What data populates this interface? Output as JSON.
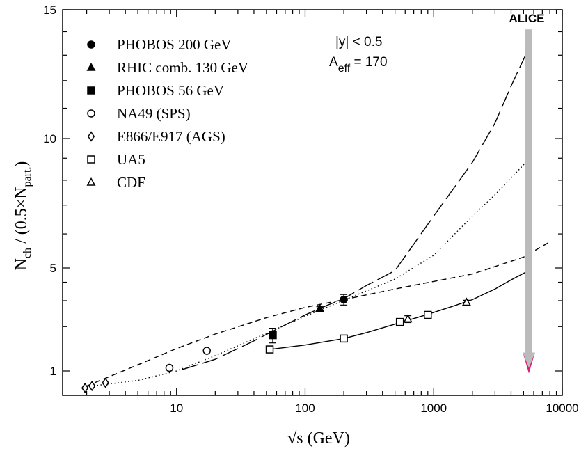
{
  "chart_data": {
    "type": "scatter",
    "xlabel": "√s (GeV)",
    "ylabel_parts": {
      "main": "N",
      "sub1": "ch",
      "mid": " / (0.5×N",
      "sub2": "part.",
      "end": ")"
    },
    "x_scale": "log",
    "xlim": [
      1.3,
      10000
    ],
    "ylim": [
      0.6,
      15
    ],
    "y_scale": "custom-nonlinear",
    "x_ticks": [
      10,
      100,
      1000,
      10000
    ],
    "x_tick_labels": [
      "10",
      "100",
      "1000",
      "10000"
    ],
    "y_ticks": [
      1,
      5,
      10,
      15
    ],
    "y_tick_labels": [
      "1",
      "5",
      "10",
      "15"
    ],
    "y_minor_ticks": [
      2,
      3,
      4,
      6,
      7,
      8,
      9,
      11,
      12,
      13,
      14
    ],
    "grid": false,
    "legend_position": "top-left",
    "annotation": {
      "line1": "|y| < 0.5",
      "a_main": "A",
      "a_sub": "eff",
      "a_rest": " = 170"
    },
    "alice": {
      "label": "ALICE",
      "x": 5500,
      "y_top": 14.1,
      "y_bottom": 0.95,
      "color": "#bbbbbb",
      "tip_color": "#e0197a"
    },
    "series": [
      {
        "name": "PHOBOS 200 GeV",
        "marker": "filled-circle",
        "points": [
          {
            "x": 200,
            "y": 3.05,
            "err": 0.25
          }
        ]
      },
      {
        "name": "RHIC comb. 130 GeV",
        "marker": "filled-triangle",
        "points": [
          {
            "x": 130,
            "y": 2.65,
            "err": 0.08
          }
        ]
      },
      {
        "name": "PHOBOS 56 GeV",
        "marker": "filled-square",
        "points": [
          {
            "x": 56,
            "y": 1.75,
            "err": 0.2
          }
        ]
      },
      {
        "name": "NA49 (SPS)",
        "marker": "open-circle",
        "points": [
          {
            "x": 8.8,
            "y": 1.05
          },
          {
            "x": 17.2,
            "y": 1.37
          }
        ]
      },
      {
        "name": "E866/E917 (AGS)",
        "marker": "open-diamond",
        "points": [
          {
            "x": 1.94,
            "y": 0.7
          },
          {
            "x": 2.2,
            "y": 0.73
          },
          {
            "x": 2.8,
            "y": 0.78
          }
        ]
      },
      {
        "name": "UA5",
        "marker": "open-square",
        "points": [
          {
            "x": 53,
            "y": 1.4
          },
          {
            "x": 200,
            "y": 1.66
          },
          {
            "x": 546,
            "y": 2.15
          },
          {
            "x": 900,
            "y": 2.4
          }
        ]
      },
      {
        "name": "CDF",
        "marker": "open-triangle",
        "points": [
          {
            "x": 630,
            "y": 2.25,
            "err": 0.12
          },
          {
            "x": 1800,
            "y": 2.92,
            "err": 0.1
          }
        ]
      }
    ],
    "curves": [
      {
        "style": "long-dash",
        "points": [
          [
            11,
            1.02
          ],
          [
            20,
            1.2
          ],
          [
            40,
            1.6
          ],
          [
            60,
            1.92
          ],
          [
            100,
            2.4
          ],
          [
            150,
            2.8
          ],
          [
            200,
            3.1
          ],
          [
            300,
            3.8
          ],
          [
            500,
            4.8
          ],
          [
            1000,
            6.6
          ],
          [
            2000,
            8.8
          ],
          [
            3000,
            10.5
          ],
          [
            4000,
            11.8
          ],
          [
            5500,
            13.3
          ]
        ]
      },
      {
        "style": "dotted",
        "points": [
          [
            2,
            0.72
          ],
          [
            5,
            0.82
          ],
          [
            10,
            1.0
          ],
          [
            20,
            1.27
          ],
          [
            50,
            1.8
          ],
          [
            100,
            2.35
          ],
          [
            200,
            3.02
          ],
          [
            500,
            4.2
          ],
          [
            1000,
            5.35
          ],
          [
            2000,
            6.6
          ],
          [
            3000,
            7.4
          ],
          [
            5500,
            8.95
          ]
        ]
      },
      {
        "style": "short-dash",
        "points": [
          [
            2,
            0.73
          ],
          [
            5,
            1.1
          ],
          [
            10,
            1.42
          ],
          [
            20,
            1.78
          ],
          [
            50,
            2.3
          ],
          [
            100,
            2.7
          ],
          [
            200,
            3.05
          ],
          [
            500,
            3.6
          ],
          [
            1000,
            4.05
          ],
          [
            2000,
            4.55
          ],
          [
            5000,
            5.3
          ],
          [
            8000,
            5.75
          ]
        ]
      },
      {
        "style": "solid",
        "points": [
          [
            53,
            1.4
          ],
          [
            100,
            1.5
          ],
          [
            200,
            1.66
          ],
          [
            300,
            1.82
          ],
          [
            500,
            2.08
          ],
          [
            900,
            2.42
          ],
          [
            1500,
            2.8
          ],
          [
            2000,
            3.05
          ],
          [
            3000,
            3.6
          ],
          [
            4000,
            4.15
          ],
          [
            5500,
            4.8
          ]
        ]
      }
    ]
  }
}
